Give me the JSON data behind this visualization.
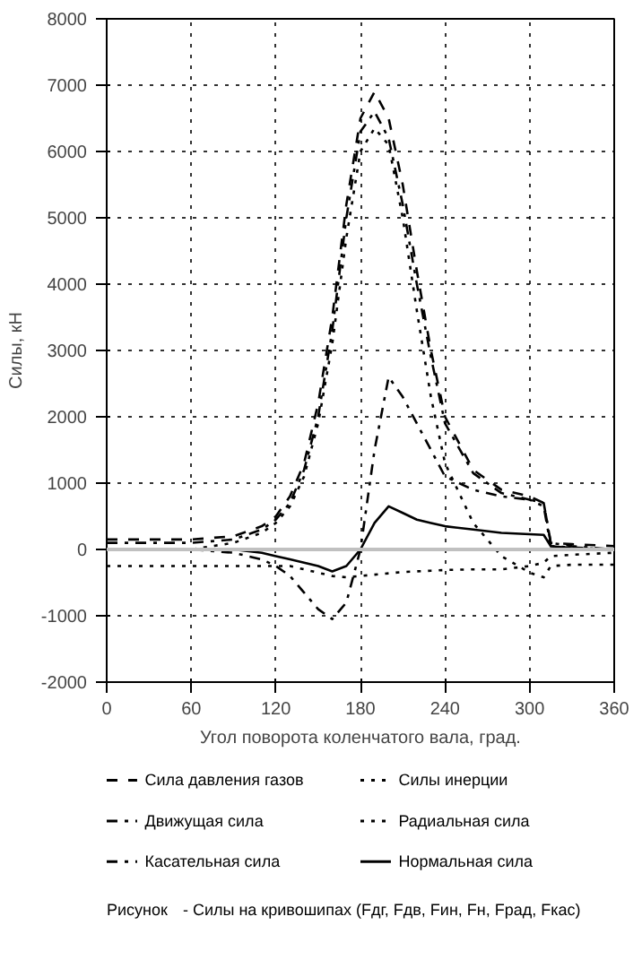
{
  "chart_data": {
    "type": "line",
    "xlabel": "Угол поворота коленчатого вала, град.",
    "ylabel": "Силы, кН",
    "x": [
      0,
      30,
      60,
      90,
      110,
      120,
      130,
      140,
      150,
      160,
      170,
      180,
      190,
      200,
      210,
      220,
      230,
      240,
      260,
      280,
      300,
      310,
      315,
      330,
      360
    ],
    "series": [
      {
        "name": "Сила давления газов",
        "color": "#000000",
        "line_style": "dashed",
        "values": [
          150,
          150,
          150,
          200,
          350,
          500,
          800,
          1300,
          2200,
          3500,
          5200,
          6500,
          6900,
          6500,
          5500,
          4200,
          3000,
          2000,
          1200,
          900,
          800,
          700,
          100,
          80,
          50
        ]
      },
      {
        "name": "Силы инерции",
        "color": "#000000",
        "line_style": "dotted",
        "values": [
          -250,
          -250,
          -250,
          -250,
          -250,
          -250,
          -250,
          -300,
          -350,
          -400,
          -420,
          -400,
          -380,
          -360,
          -340,
          -330,
          -320,
          -310,
          -300,
          -300,
          -250,
          -200,
          -100,
          -80,
          -50
        ]
      },
      {
        "name": "Движущая сила",
        "color": "#000000",
        "line_style": "dashdot",
        "values": [
          100,
          100,
          100,
          150,
          300,
          450,
          700,
          1200,
          2000,
          3300,
          5000,
          6300,
          6600,
          6200,
          5200,
          4000,
          2900,
          1900,
          1150,
          850,
          750,
          650,
          50,
          30,
          0
        ]
      },
      {
        "name": "Радиальная сила",
        "color": "#000000",
        "line_style": "dotted",
        "values": [
          0,
          0,
          0,
          100,
          250,
          400,
          650,
          1100,
          1900,
          3100,
          4700,
          6000,
          6350,
          6100,
          5000,
          3600,
          2300,
          1300,
          400,
          -100,
          -350,
          -420,
          -250,
          -230,
          -230
        ]
      },
      {
        "name": "Касательная сила",
        "color": "#000000",
        "line_style": "dashdot",
        "values": [
          0,
          0,
          0,
          -50,
          -150,
          -250,
          -400,
          -650,
          -900,
          -1050,
          -800,
          0,
          1500,
          2600,
          2300,
          1900,
          1500,
          1100,
          900,
          800,
          750,
          700,
          100,
          50,
          0
        ]
      },
      {
        "name": "Нормальная сила",
        "color": "#000000",
        "line_style": "solid",
        "values": [
          0,
          0,
          0,
          0,
          -50,
          -100,
          -150,
          -200,
          -250,
          -330,
          -250,
          0,
          400,
          650,
          550,
          450,
          400,
          350,
          300,
          250,
          230,
          220,
          50,
          20,
          0
        ]
      }
    ],
    "xlim": [
      0,
      360
    ],
    "xticks": [
      0,
      60,
      120,
      180,
      240,
      300,
      360
    ],
    "ylim": [
      -2000,
      8000
    ],
    "yticks": [
      -2000,
      -1000,
      0,
      1000,
      2000,
      3000,
      4000,
      5000,
      6000,
      7000,
      8000
    ],
    "ref_lines": [
      {
        "axis": "y",
        "value": 0,
        "color": "#c0c0c0"
      }
    ],
    "grid": true,
    "legend": "bottom",
    "annotations": [
      "Рисунок",
      "- Силы на кривошипах (Fдг, Fдв, Fин, Fн, Fрад, Fкас)"
    ]
  }
}
